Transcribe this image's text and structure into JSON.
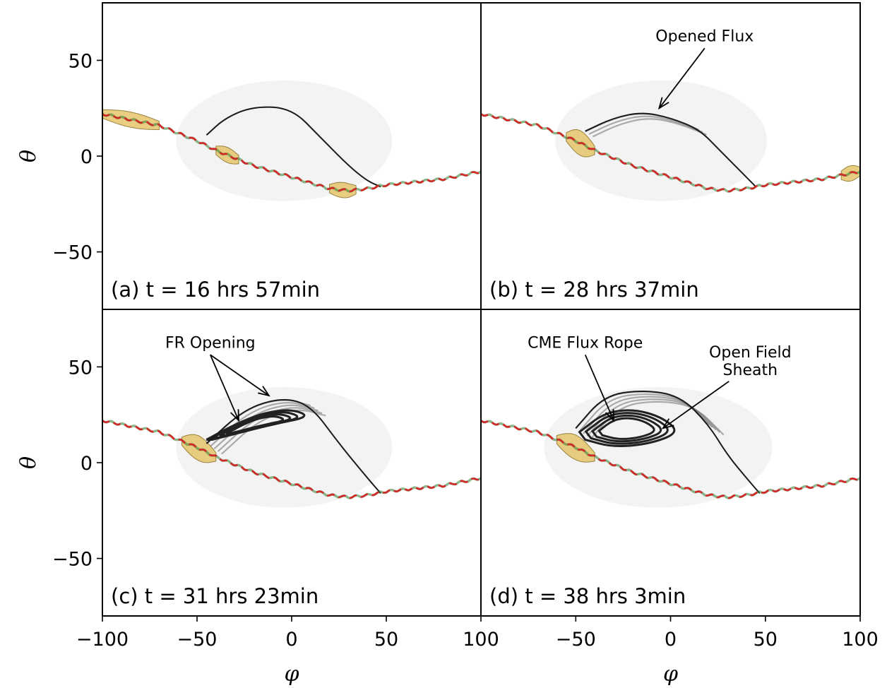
{
  "chart_data": {
    "type": "scatter",
    "layout": "2x2 shared axes",
    "xlabel": "φ",
    "ylabel": "θ",
    "xlim": [
      -100,
      100
    ],
    "ylim": [
      -80,
      80
    ],
    "xticks": [
      -100,
      -50,
      0,
      50,
      100
    ],
    "xtick_labels": [
      "−100",
      "−50",
      "0",
      "50",
      "100"
    ],
    "xticks_right": [
      -50,
      0,
      50,
      100
    ],
    "xtick_labels_right": [
      "−50",
      "0",
      "50",
      "100"
    ],
    "yticks": [
      50,
      0,
      -50
    ],
    "ytick_labels": [
      "50",
      "0",
      "−50"
    ],
    "current_sheet": {
      "phi": [
        -100,
        -90,
        -80,
        -70,
        -60,
        -50,
        -40,
        -30,
        -20,
        -10,
        0,
        10,
        20,
        30,
        40,
        50,
        60,
        70,
        80,
        90,
        100
      ],
      "theta": [
        22,
        20,
        18,
        16,
        12,
        8,
        3,
        -1,
        -5,
        -8,
        -11,
        -14,
        -17,
        -18,
        -17,
        -15,
        -14,
        -13,
        -12,
        -10,
        -8
      ]
    },
    "panels": [
      {
        "id": "a",
        "label": "(a) t = 16 hrs 57min",
        "annotations": [],
        "loop_outline": {
          "phi": [
            -45,
            -35,
            -20,
            0,
            15,
            30,
            40,
            47
          ],
          "theta": [
            11,
            20,
            26,
            25,
            10,
            -5,
            -13,
            -16
          ]
        },
        "streamers": [
          {
            "phi": [
              -100,
              -70
            ],
            "theta": [
              17,
              24
            ]
          },
          {
            "phi": [
              -40,
              -28
            ],
            "theta": [
              -1,
              3
            ]
          },
          {
            "phi": [
              20,
              34
            ],
            "theta": [
              -20,
              -17
            ]
          }
        ]
      },
      {
        "id": "b",
        "label": "(b) t = 28 hrs 37min",
        "annotations": [
          {
            "text": "Opened Flux",
            "point": [
              -6,
              25
            ],
            "text_at": [
              18,
              60
            ]
          }
        ],
        "loop_outline": {
          "phi": [
            -45,
            -30,
            -15,
            0,
            15,
            25,
            35,
            45
          ],
          "theta": [
            13,
            20,
            23,
            20,
            14,
            4,
            -6,
            -16
          ]
        },
        "streamers": [
          {
            "phi": [
              -55,
              -40
            ],
            "theta": [
              3,
              16
            ]
          },
          {
            "phi": [
              90,
              100
            ],
            "theta": [
              -12,
              -8
            ]
          }
        ]
      },
      {
        "id": "c",
        "label": "(c) t = 31 hrs 23min",
        "annotations": [
          {
            "text": "FR Opening",
            "points": [
              [
                -28,
                22
              ],
              [
                -12,
                35
              ]
            ],
            "text_at": [
              -43,
              60
            ]
          }
        ],
        "loop_outline": {
          "phi": [
            -45,
            -25,
            -5,
            10,
            25,
            40,
            47
          ],
          "theta": [
            10,
            28,
            34,
            30,
            10,
            -8,
            -16
          ]
        },
        "streamers": [
          {
            "phi": [
              -58,
              -40
            ],
            "theta": [
              4,
              16
            ]
          }
        ]
      },
      {
        "id": "d",
        "label": "(d) t = 38 hrs 3min",
        "annotations": [
          {
            "text": "CME Flux Rope",
            "point": [
              -30,
              22
            ],
            "text_at": [
              -45,
              60
            ]
          },
          {
            "text": "Open Field",
            "text2": "Sheath",
            "point": [
              -4,
              18
            ],
            "text_at": [
              42,
              55
            ]
          }
        ],
        "loop_outline": {
          "phi": [
            -50,
            -35,
            -15,
            5,
            20,
            30,
            40,
            47
          ],
          "theta": [
            18,
            35,
            38,
            35,
            20,
            4,
            -8,
            -16
          ]
        },
        "streamers": [
          {
            "phi": [
              -60,
              -40
            ],
            "theta": [
              0,
              16
            ]
          }
        ]
      }
    ]
  }
}
